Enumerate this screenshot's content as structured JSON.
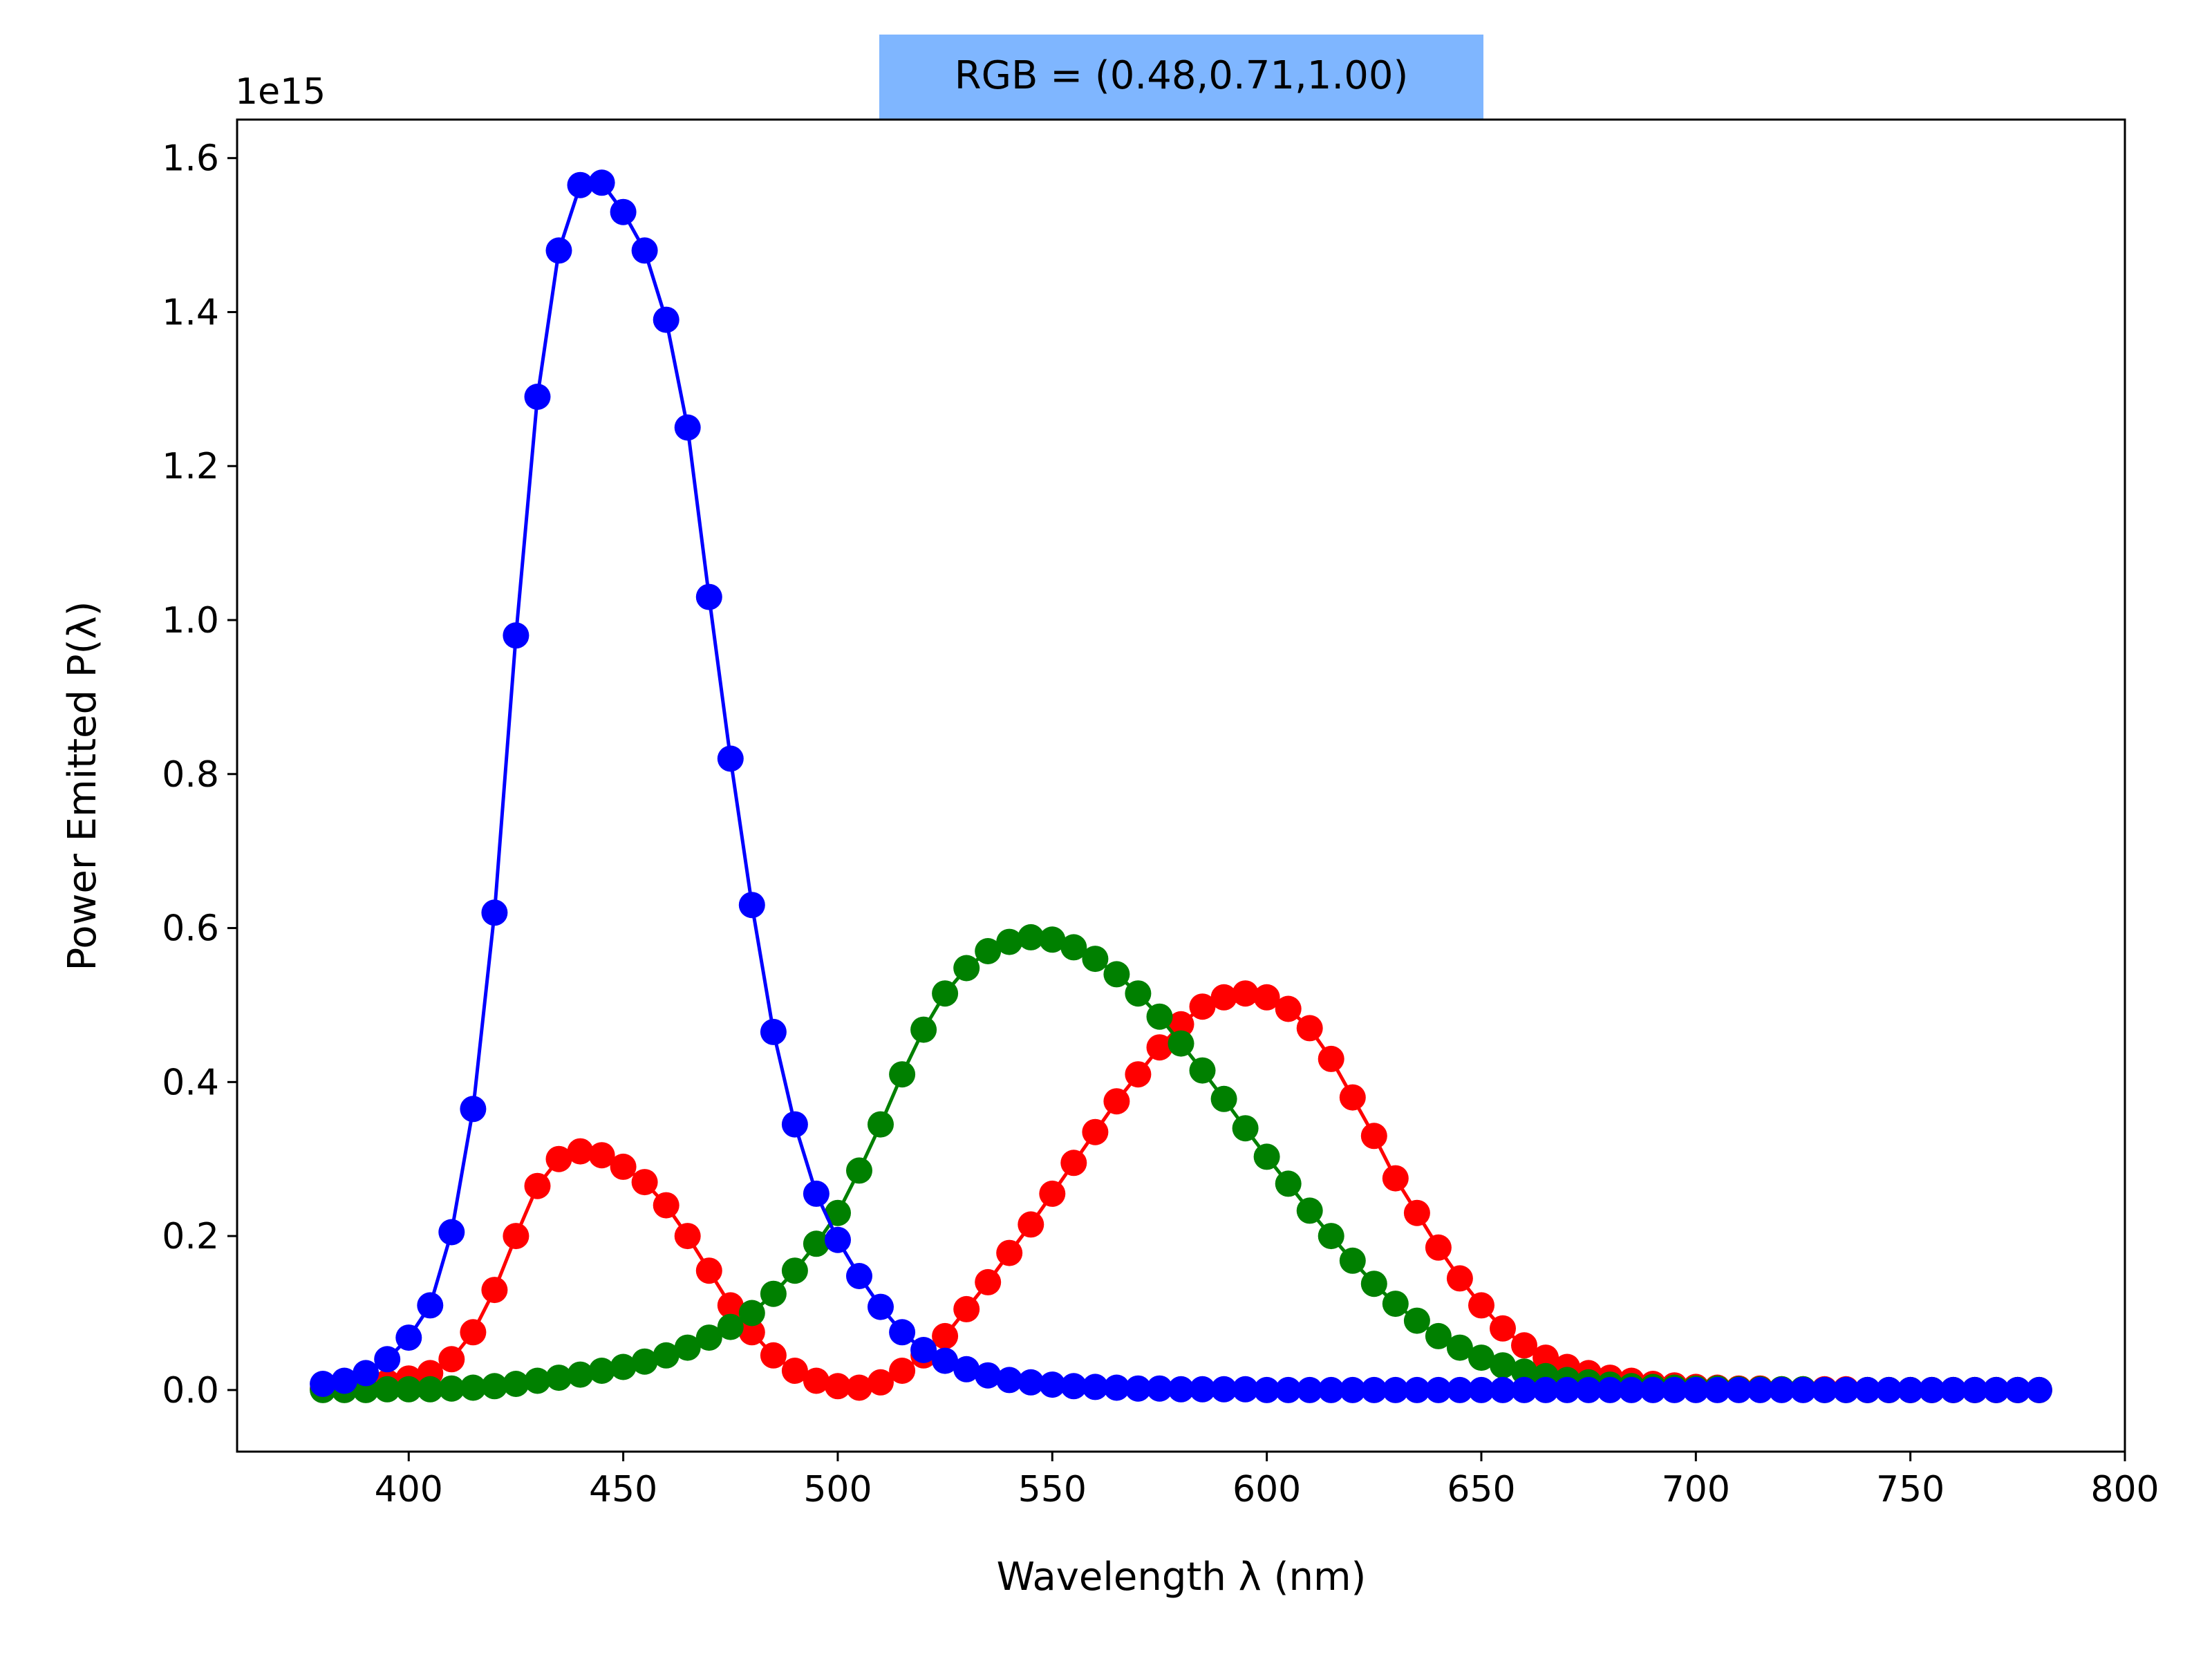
{
  "chart_data": {
    "type": "line",
    "title": "RGB = (0.48,0.71,1.00)",
    "title_box_color": "#7fb6ff",
    "xlabel": "Wavelength λ (nm)",
    "ylabel": "Power Emitted P(λ)",
    "y_offset_label": "1e15",
    "xlim": [
      360,
      800
    ],
    "ylim": [
      -0.08,
      1.65
    ],
    "x_ticks": [
      400,
      450,
      500,
      550,
      600,
      650,
      700,
      750,
      800
    ],
    "x_tick_labels": [
      "400",
      "450",
      "500",
      "550",
      "600",
      "650",
      "700",
      "750",
      "800"
    ],
    "y_ticks": [
      0.0,
      0.2,
      0.4,
      0.6,
      0.8,
      1.0,
      1.2,
      1.4,
      1.6
    ],
    "y_tick_labels": [
      "0.0",
      "0.2",
      "0.4",
      "0.6",
      "0.8",
      "1.0",
      "1.2",
      "1.4",
      "1.6"
    ],
    "grid": false,
    "marker": "circle",
    "x": [
      380,
      385,
      390,
      395,
      400,
      405,
      410,
      415,
      420,
      425,
      430,
      435,
      440,
      445,
      450,
      455,
      460,
      465,
      470,
      475,
      480,
      485,
      490,
      495,
      500,
      505,
      510,
      515,
      520,
      525,
      530,
      535,
      540,
      545,
      550,
      555,
      560,
      565,
      570,
      575,
      580,
      585,
      590,
      595,
      600,
      605,
      610,
      615,
      620,
      625,
      630,
      635,
      640,
      645,
      650,
      655,
      660,
      665,
      670,
      675,
      680,
      685,
      690,
      695,
      700,
      705,
      710,
      715,
      720,
      725,
      730,
      735,
      740,
      745,
      750,
      755,
      760,
      765,
      770,
      775,
      780
    ],
    "series": [
      {
        "color": "#ff0000",
        "values": [
          0.002,
          0.004,
          0.006,
          0.01,
          0.015,
          0.022,
          0.04,
          0.075,
          0.13,
          0.2,
          0.265,
          0.3,
          0.31,
          0.305,
          0.29,
          0.27,
          0.24,
          0.2,
          0.155,
          0.11,
          0.075,
          0.045,
          0.025,
          0.012,
          0.005,
          0.003,
          0.01,
          0.025,
          0.045,
          0.07,
          0.105,
          0.14,
          0.178,
          0.215,
          0.255,
          0.295,
          0.335,
          0.375,
          0.41,
          0.445,
          0.475,
          0.498,
          0.51,
          0.515,
          0.51,
          0.495,
          0.47,
          0.43,
          0.38,
          0.33,
          0.275,
          0.23,
          0.185,
          0.145,
          0.11,
          0.08,
          0.058,
          0.042,
          0.03,
          0.022,
          0.016,
          0.012,
          0.008,
          0.006,
          0.004,
          0.003,
          0.002,
          0.002,
          0.001,
          0.001,
          0.001,
          0.001,
          0.0,
          0.0,
          0.0,
          0.0,
          0.0,
          0.0,
          0.0,
          0.0,
          0.0
        ]
      },
      {
        "color": "#008000",
        "values": [
          0.0,
          0.0,
          0.0,
          0.001,
          0.001,
          0.001,
          0.002,
          0.003,
          0.005,
          0.008,
          0.012,
          0.016,
          0.02,
          0.025,
          0.03,
          0.037,
          0.045,
          0.055,
          0.068,
          0.082,
          0.1,
          0.125,
          0.155,
          0.19,
          0.23,
          0.285,
          0.345,
          0.41,
          0.468,
          0.515,
          0.548,
          0.57,
          0.582,
          0.588,
          0.585,
          0.575,
          0.56,
          0.54,
          0.515,
          0.485,
          0.45,
          0.415,
          0.378,
          0.34,
          0.303,
          0.268,
          0.233,
          0.2,
          0.168,
          0.138,
          0.112,
          0.09,
          0.07,
          0.055,
          0.042,
          0.032,
          0.024,
          0.018,
          0.013,
          0.01,
          0.007,
          0.005,
          0.004,
          0.003,
          0.002,
          0.002,
          0.001,
          0.001,
          0.001,
          0.001,
          0.0,
          0.0,
          0.0,
          0.0,
          0.0,
          0.0,
          0.0,
          0.0,
          0.0,
          0.0,
          0.0
        ]
      },
      {
        "color": "#0000ff",
        "values": [
          0.008,
          0.012,
          0.022,
          0.04,
          0.068,
          0.11,
          0.205,
          0.365,
          0.62,
          0.98,
          1.29,
          1.48,
          1.565,
          1.568,
          1.53,
          1.48,
          1.39,
          1.25,
          1.03,
          0.82,
          0.63,
          0.465,
          0.345,
          0.255,
          0.195,
          0.148,
          0.108,
          0.075,
          0.052,
          0.038,
          0.027,
          0.019,
          0.013,
          0.01,
          0.007,
          0.005,
          0.004,
          0.003,
          0.002,
          0.002,
          0.001,
          0.001,
          0.001,
          0.001,
          0.0,
          0.0,
          0.0,
          0.0,
          0.0,
          0.0,
          0.0,
          0.0,
          0.0,
          0.0,
          0.0,
          0.0,
          0.0,
          0.0,
          0.0,
          0.0,
          0.0,
          0.0,
          0.0,
          0.0,
          0.0,
          0.0,
          0.0,
          0.0,
          0.0,
          0.0,
          0.0,
          0.0,
          0.0,
          0.0,
          0.0,
          0.0,
          0.0,
          0.0,
          0.0,
          0.0,
          0.0
        ]
      }
    ]
  }
}
